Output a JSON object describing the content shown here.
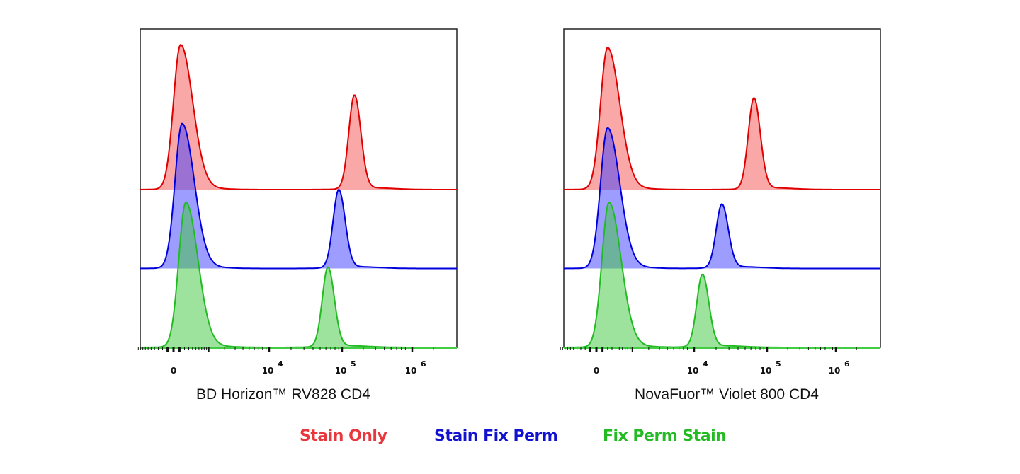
{
  "legend": [
    {
      "name": "Stain Only",
      "color": "#e8383d"
    },
    {
      "name": "Stain Fix Perm",
      "color": "#1111d0"
    },
    {
      "name": "Fix Perm Stain",
      "color": "#22bb22"
    }
  ],
  "chart_data": [
    {
      "type": "histogram",
      "xlabel": "BD Horizon™ RV828 CD4",
      "x_scale": "biexponential",
      "tick_labels": [
        {
          "value": 0,
          "base": "0",
          "exp": ""
        },
        {
          "value": 10000,
          "base": "10",
          "exp": "4"
        },
        {
          "value": 100000,
          "base": "10",
          "exp": "5"
        },
        {
          "value": 1000000,
          "base": "10",
          "exp": "6"
        }
      ],
      "grid": false,
      "layout": "offset overlay",
      "series": [
        {
          "name": "Stain Only",
          "color": "#e00000",
          "peaks": [
            {
              "x": 120,
              "height": 100
            },
            {
              "x": 150000,
              "height": 65
            }
          ]
        },
        {
          "name": "Stain Fix Perm",
          "color": "#0000dd",
          "peaks": [
            {
              "x": 150,
              "height": 100
            },
            {
              "x": 90000,
              "height": 54
            }
          ]
        },
        {
          "name": "Fix Perm Stain",
          "color": "#22bb22",
          "peaks": [
            {
              "x": 230,
              "height": 100
            },
            {
              "x": 64000,
              "height": 55
            }
          ]
        }
      ]
    },
    {
      "type": "histogram",
      "xlabel": "NovaFuor™ Violet 800 CD4",
      "x_scale": "biexponential",
      "tick_labels": [
        {
          "value": 0,
          "base": "0",
          "exp": ""
        },
        {
          "value": 10000,
          "base": "10",
          "exp": "4"
        },
        {
          "value": 100000,
          "base": "10",
          "exp": "5"
        },
        {
          "value": 1000000,
          "base": "10",
          "exp": "6"
        }
      ],
      "grid": false,
      "layout": "offset overlay",
      "series": [
        {
          "name": "Stain Only",
          "color": "#e00000",
          "peaks": [
            {
              "x": 200,
              "height": 98
            },
            {
              "x": 66000,
              "height": 63
            }
          ]
        },
        {
          "name": "Stain Fix Perm",
          "color": "#0000dd",
          "peaks": [
            {
              "x": 200,
              "height": 97
            },
            {
              "x": 24000,
              "height": 44
            }
          ]
        },
        {
          "name": "Fix Perm Stain",
          "color": "#22bb22",
          "peaks": [
            {
              "x": 230,
              "height": 100
            },
            {
              "x": 13000,
              "height": 50
            }
          ]
        }
      ]
    }
  ]
}
